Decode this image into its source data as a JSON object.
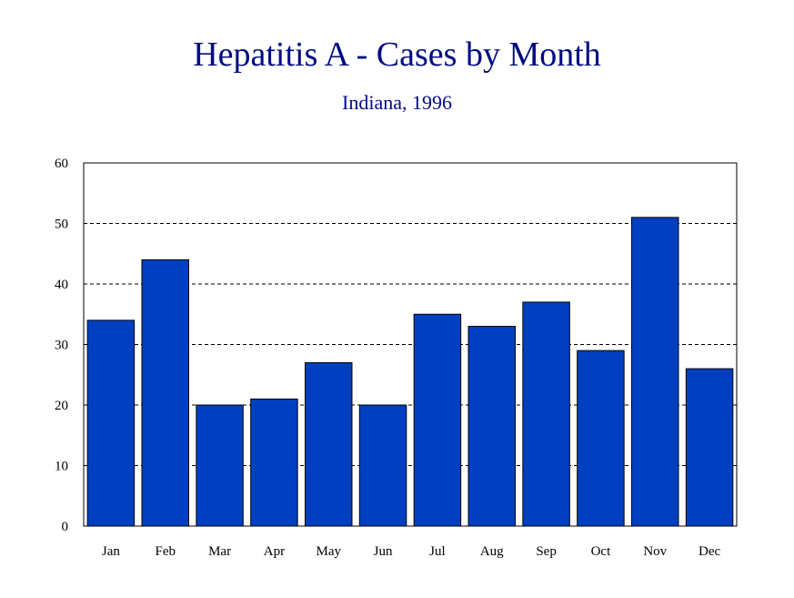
{
  "colors": {
    "bar": "#0040c0",
    "title": "#000c80"
  },
  "chart_data": {
    "type": "bar",
    "title": "Hepatitis A - Cases by Month",
    "subtitle": "Indiana, 1996",
    "categories": [
      "Jan",
      "Feb",
      "Mar",
      "Apr",
      "May",
      "Jun",
      "Jul",
      "Aug",
      "Sep",
      "Oct",
      "Nov",
      "Dec"
    ],
    "values": [
      34,
      44,
      20,
      21,
      27,
      20,
      35,
      33,
      37,
      29,
      51,
      26
    ],
    "ylim": [
      0,
      60
    ],
    "yticks": [
      "0",
      "10",
      "20",
      "30",
      "40",
      "50",
      "60"
    ],
    "grid": "horizontal dashed",
    "legend": "none"
  }
}
